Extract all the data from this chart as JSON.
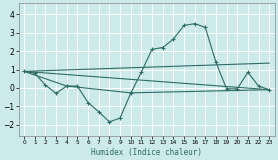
{
  "xlabel": "Humidex (Indice chaleur)",
  "background_color": "#cceaea",
  "grid_color": "#ffffff",
  "line_color": "#2e6b65",
  "xlim": [
    -0.5,
    23.5
  ],
  "ylim": [
    -2.6,
    4.6
  ],
  "xticks": [
    0,
    1,
    2,
    3,
    4,
    5,
    6,
    7,
    8,
    9,
    10,
    11,
    12,
    13,
    14,
    15,
    16,
    17,
    18,
    19,
    20,
    21,
    22,
    23
  ],
  "yticks": [
    -2,
    -1,
    0,
    1,
    2,
    3,
    4
  ],
  "series": {
    "main": {
      "x": [
        0,
        1,
        2,
        3,
        4,
        5,
        6,
        7,
        8,
        9,
        10,
        11,
        12,
        13,
        14,
        15,
        16,
        17,
        18,
        19,
        20,
        21,
        22,
        23
      ],
      "y": [
        0.9,
        0.8,
        0.15,
        -0.3,
        0.1,
        0.1,
        -0.8,
        -1.3,
        -1.85,
        -1.65,
        -0.3,
        0.85,
        2.1,
        2.2,
        2.65,
        3.4,
        3.5,
        3.3,
        1.4,
        -0.05,
        -0.05,
        0.85,
        0.1,
        -0.1
      ]
    },
    "upper": {
      "x": [
        0,
        23
      ],
      "y": [
        0.9,
        1.35
      ]
    },
    "lower_a": {
      "x": [
        0,
        23
      ],
      "y": [
        0.9,
        -0.1
      ]
    },
    "lower_b": {
      "x": [
        0,
        4,
        10,
        23
      ],
      "y": [
        0.9,
        0.1,
        -0.27,
        -0.1
      ]
    }
  }
}
